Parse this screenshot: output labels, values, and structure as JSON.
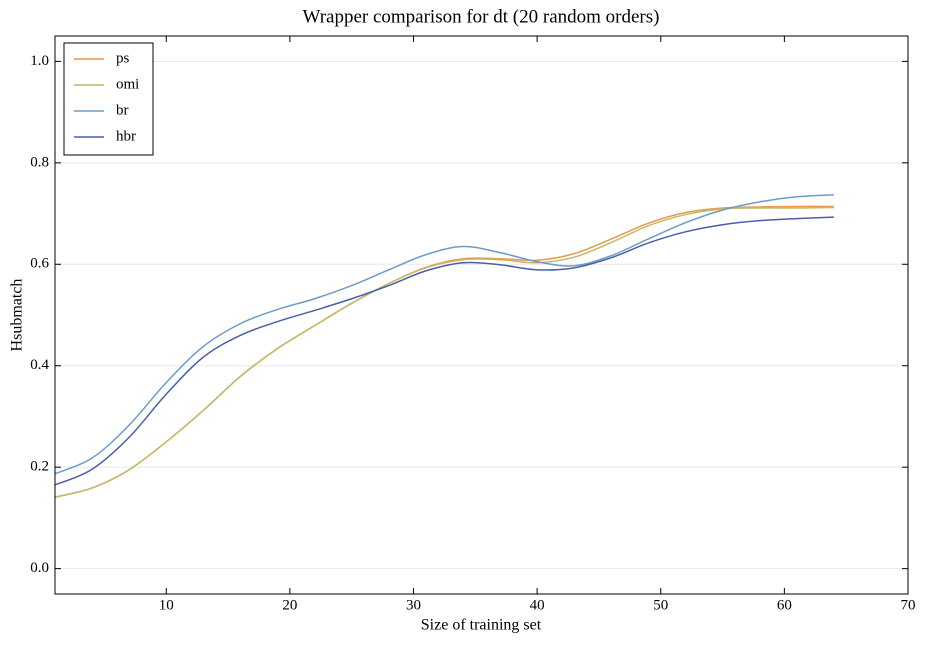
{
  "chart_data": {
    "type": "line",
    "title": "Wrapper comparison for dt (20 random orders)",
    "x_label": "Size of training set",
    "y_label": "Hsubmatch",
    "x": [
      1,
      4,
      7,
      10,
      13,
      16,
      19,
      22,
      25,
      28,
      31,
      34,
      37,
      40,
      43,
      46,
      49,
      52,
      55,
      58,
      61,
      64
    ],
    "series": [
      {
        "name": "ps",
        "color": "#e8994a",
        "values": [
          0.141,
          0.159,
          0.195,
          0.25,
          0.312,
          0.379,
          0.434,
          0.479,
          0.523,
          0.562,
          0.594,
          0.611,
          0.611,
          0.608,
          0.621,
          0.65,
          0.681,
          0.702,
          0.711,
          0.713,
          0.714,
          0.714
        ]
      },
      {
        "name": "omi",
        "color": "#c2b96a",
        "values": [
          0.141,
          0.159,
          0.195,
          0.25,
          0.312,
          0.379,
          0.434,
          0.479,
          0.523,
          0.562,
          0.593,
          0.609,
          0.609,
          0.603,
          0.614,
          0.643,
          0.676,
          0.698,
          0.709,
          0.711,
          0.711,
          0.712
        ]
      },
      {
        "name": "br",
        "color": "#6b9bc8",
        "values": [
          0.187,
          0.218,
          0.283,
          0.367,
          0.438,
          0.483,
          0.511,
          0.532,
          0.558,
          0.589,
          0.619,
          0.635,
          0.623,
          0.605,
          0.597,
          0.617,
          0.65,
          0.682,
          0.707,
          0.723,
          0.733,
          0.737
        ]
      },
      {
        "name": "hbr",
        "color": "#4a5ea8",
        "values": [
          0.165,
          0.196,
          0.259,
          0.344,
          0.417,
          0.46,
          0.487,
          0.509,
          0.532,
          0.558,
          0.587,
          0.603,
          0.599,
          0.589,
          0.593,
          0.613,
          0.642,
          0.664,
          0.678,
          0.686,
          0.69,
          0.693
        ]
      }
    ],
    "xlim": [
      1,
      70
    ],
    "xticks": [
      10,
      20,
      30,
      40,
      50,
      60,
      70
    ],
    "ylim": [
      -0.05,
      1.05
    ],
    "yticks": [
      {
        "value": 0,
        "label": "0.0"
      },
      0.2,
      0.4,
      0.6,
      0.8,
      {
        "value": 1,
        "label": "1.0"
      }
    ],
    "grid": true,
    "legend": "upper left"
  }
}
